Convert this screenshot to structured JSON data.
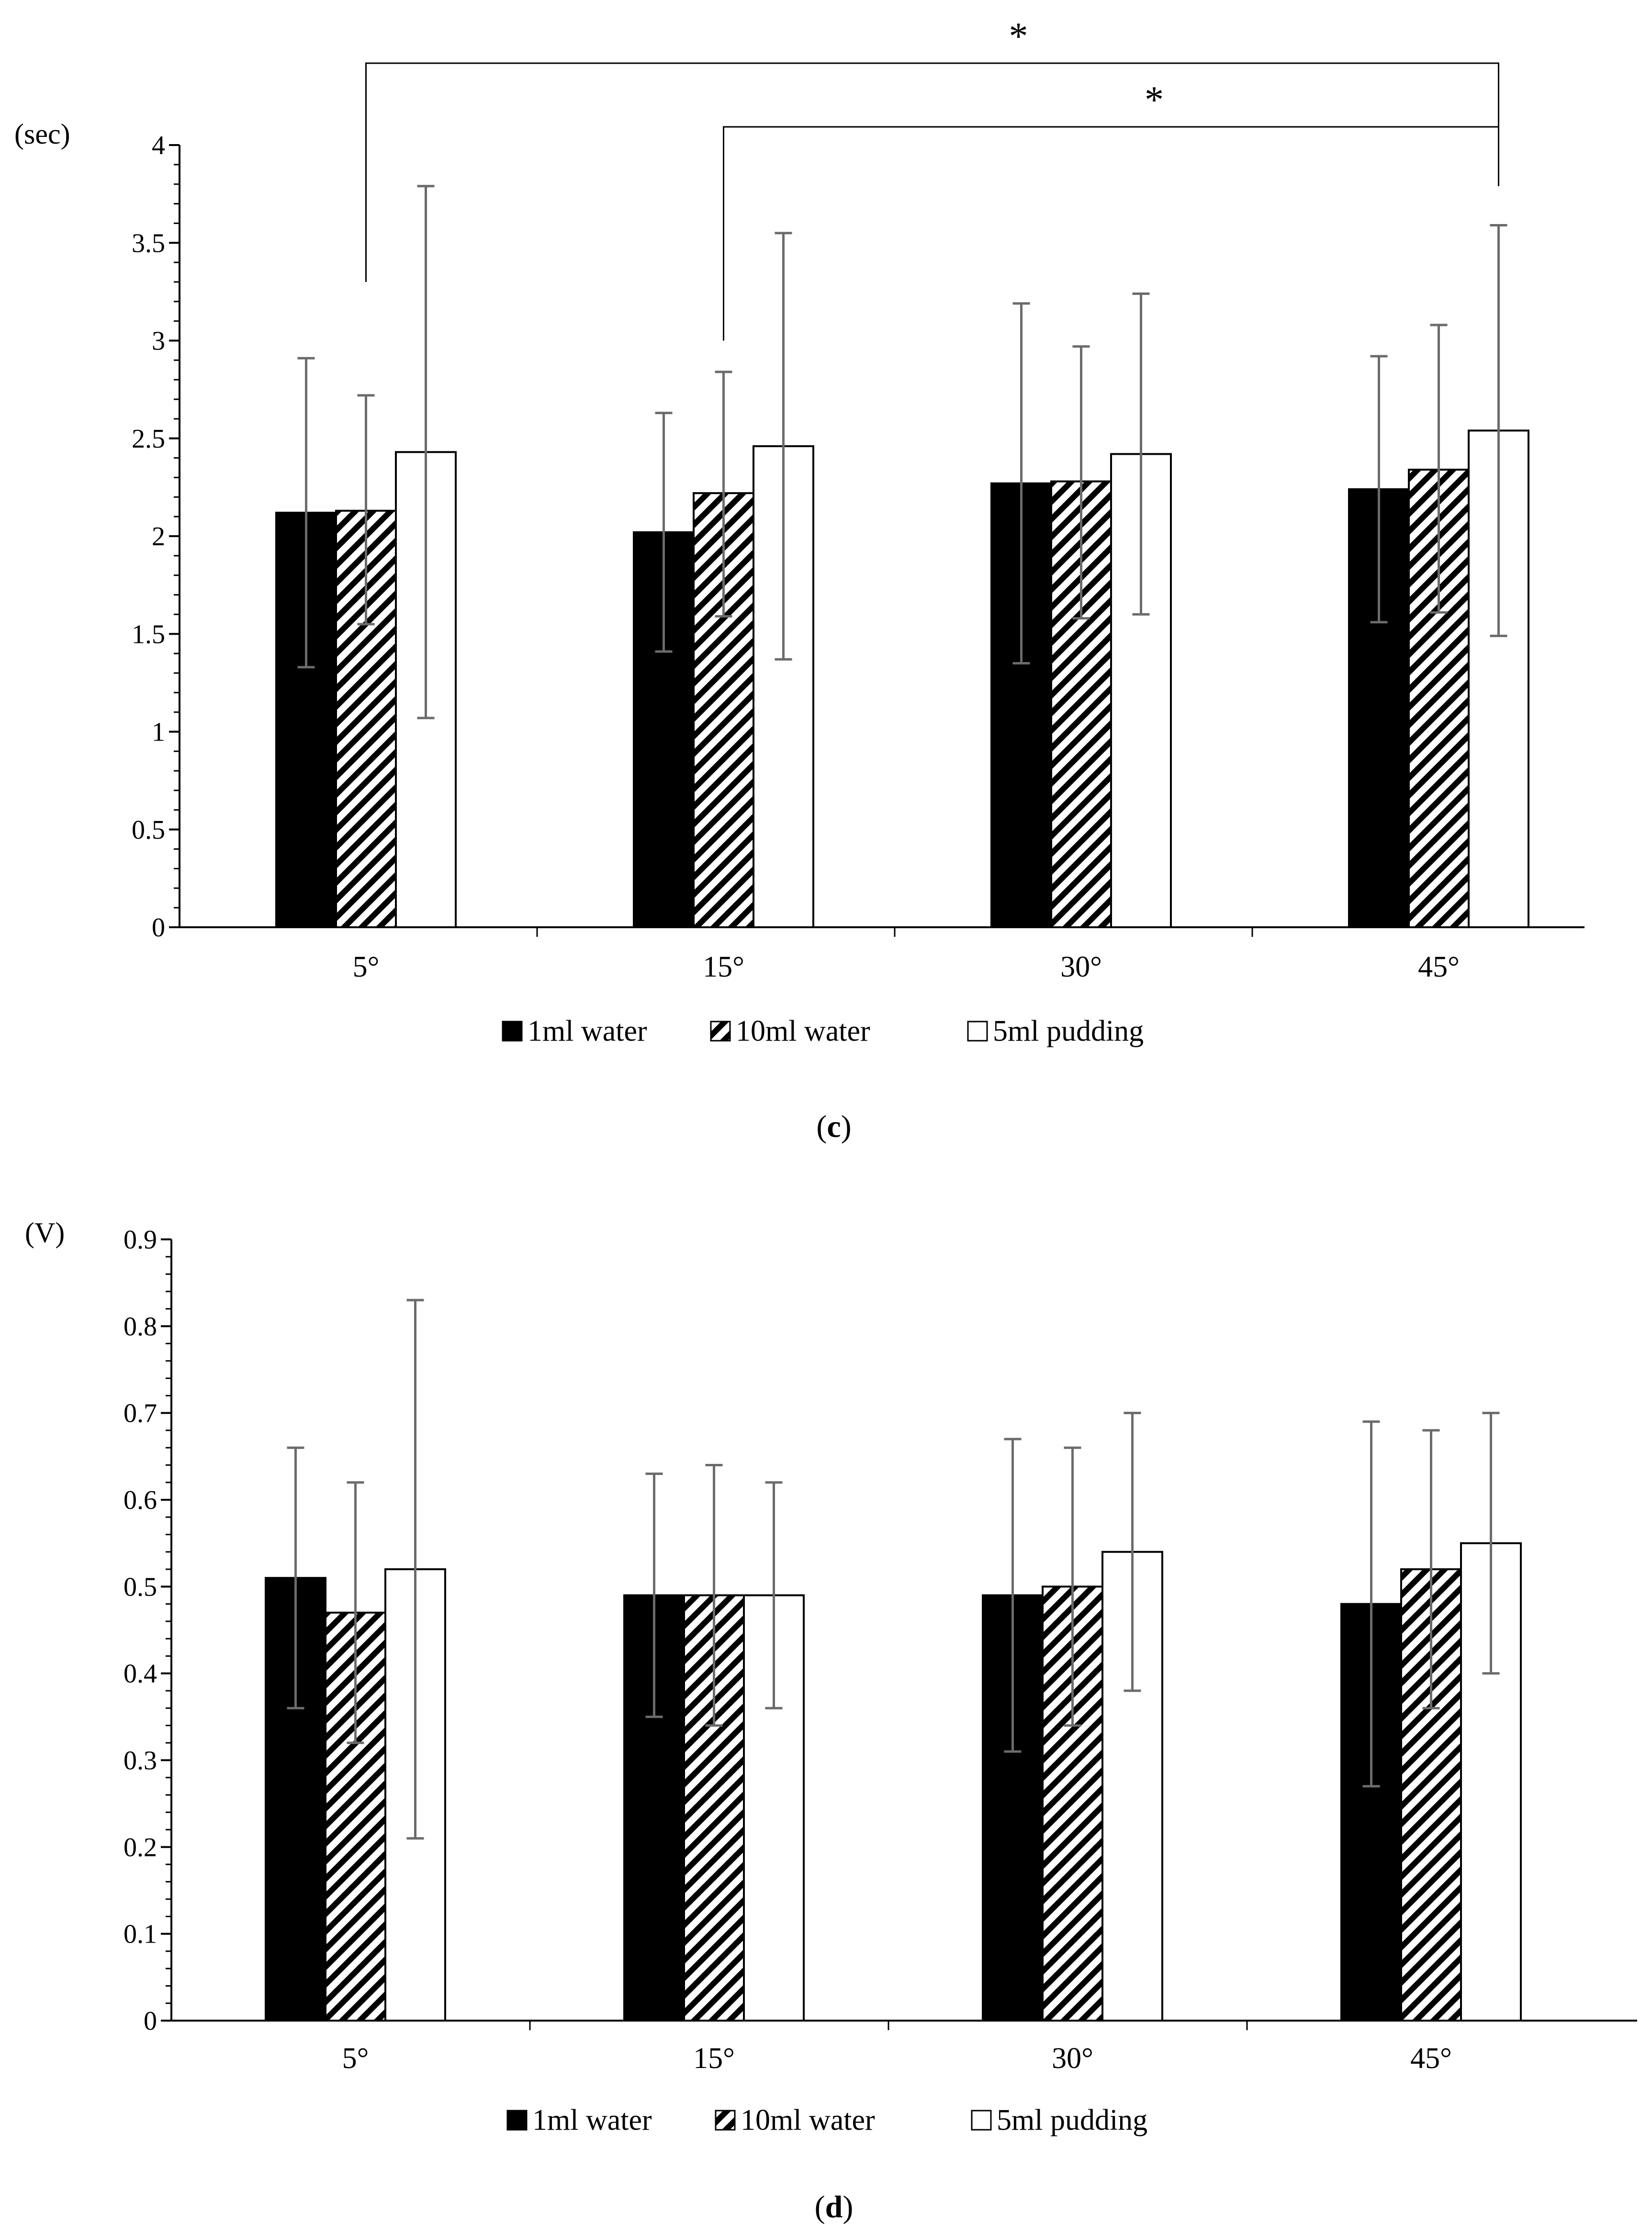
{
  "legend": [
    {
      "name": "1ml water",
      "pattern": "solid-black"
    },
    {
      "name": "10ml water",
      "pattern": "hatched"
    },
    {
      "name": "5ml pudding",
      "pattern": "white"
    }
  ],
  "colors": {
    "solid": "#000000",
    "hatch": "#000000",
    "white": "#ffffff",
    "errorbar": "#6b6b6b",
    "axis": "#000000"
  },
  "chart_data": [
    {
      "type": "bar",
      "panel": "c",
      "unit_label": "(sec)",
      "categories": [
        "5°",
        "15°",
        "30°",
        "45°"
      ],
      "ylim": [
        0,
        4
      ],
      "yticks": [
        0,
        0.5,
        1,
        1.5,
        2,
        2.5,
        3,
        3.5,
        4
      ],
      "ytick_labels": [
        "0",
        "0.5",
        "1",
        "1.5",
        "2",
        "2.5",
        "3",
        "3.5",
        "4"
      ],
      "series": [
        {
          "name": "1ml water",
          "values": [
            2.12,
            2.02,
            2.27,
            2.24
          ],
          "err_low": [
            1.33,
            1.41,
            1.35,
            1.56
          ],
          "err_high": [
            2.91,
            2.63,
            3.19,
            2.92
          ]
        },
        {
          "name": "10ml water",
          "values": [
            2.13,
            2.22,
            2.28,
            2.34
          ],
          "err_low": [
            1.55,
            1.59,
            1.58,
            1.61
          ],
          "err_high": [
            2.72,
            2.84,
            2.97,
            3.08
          ]
        },
        {
          "name": "5ml pudding",
          "values": [
            2.43,
            2.46,
            2.42,
            2.54
          ],
          "err_low": [
            1.07,
            1.37,
            1.6,
            1.49
          ],
          "err_high": [
            3.79,
            3.55,
            3.24,
            3.59
          ]
        }
      ],
      "significance": [
        {
          "from": "5°",
          "to": "45°",
          "label": "*"
        },
        {
          "from": "15°",
          "to": "45°",
          "label": "*"
        }
      ],
      "grid": false,
      "legend_position": "bottom-center"
    },
    {
      "type": "bar",
      "panel": "d",
      "unit_label": "(V)",
      "categories": [
        "5°",
        "15°",
        "30°",
        "45°"
      ],
      "ylim": [
        0,
        0.9
      ],
      "yticks": [
        0,
        0.1,
        0.2,
        0.3,
        0.4,
        0.5,
        0.6,
        0.7,
        0.8,
        0.9
      ],
      "ytick_labels": [
        "0",
        "0.1",
        "0.2",
        "0.3",
        "0.4",
        "0.5",
        "0.6",
        "0.7",
        "0.8",
        "0.9"
      ],
      "series": [
        {
          "name": "1ml water",
          "values": [
            0.51,
            0.49,
            0.49,
            0.48
          ],
          "err_low": [
            0.36,
            0.35,
            0.31,
            0.27
          ],
          "err_high": [
            0.66,
            0.63,
            0.67,
            0.69
          ]
        },
        {
          "name": "10ml water",
          "values": [
            0.47,
            0.49,
            0.5,
            0.52
          ],
          "err_low": [
            0.32,
            0.34,
            0.34,
            0.36
          ],
          "err_high": [
            0.62,
            0.64,
            0.66,
            0.68
          ]
        },
        {
          "name": "5ml pudding",
          "values": [
            0.52,
            0.49,
            0.54,
            0.55
          ],
          "err_low": [
            0.21,
            0.36,
            0.38,
            0.4
          ],
          "err_high": [
            0.83,
            0.62,
            0.7,
            0.7
          ]
        }
      ],
      "significance": [],
      "grid": false,
      "legend_position": "bottom-center"
    }
  ]
}
